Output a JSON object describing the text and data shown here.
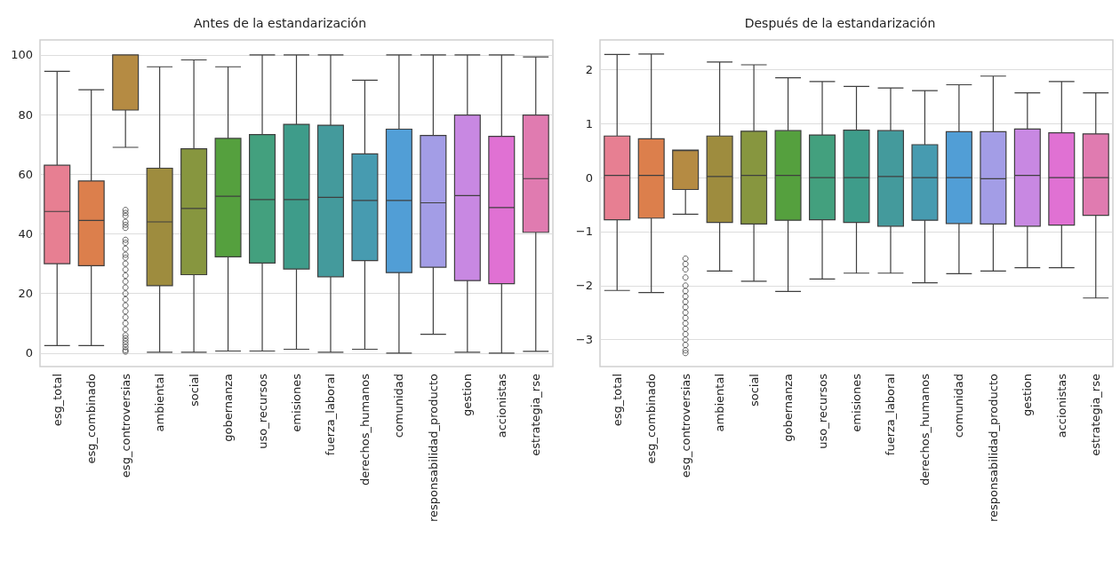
{
  "chart_data": [
    {
      "type": "box",
      "title": "Antes de la estandarización",
      "categories": [
        "esg_total",
        "esg_combinado",
        "esg_controversias",
        "ambiental",
        "social",
        "gobernanza",
        "uso_recursos",
        "emisiones",
        "fuerza_laboral",
        "derechos_humanos",
        "comunidad",
        "responsabilidad_producto",
        "gestion",
        "accionistas",
        "estrategia_rse"
      ],
      "colors": [
        "#e77f92",
        "#dc7f4c",
        "#b58b43",
        "#9e8c3e",
        "#87963f",
        "#55a03e",
        "#43a07e",
        "#3e9c8a",
        "#449a9c",
        "#479bb0",
        "#519ed6",
        "#a39de6",
        "#c888e2",
        "#e071d3",
        "#e07bb0"
      ],
      "boxes": [
        {
          "low": 2.5,
          "q1": 30,
          "median": 47.5,
          "q3": 63,
          "high": 94.5
        },
        {
          "low": 2.5,
          "q1": 29.3,
          "median": 44.5,
          "q3": 57.7,
          "high": 88.3
        },
        {
          "low": 69,
          "q1": 81.5,
          "median": 100,
          "q3": 100,
          "high": 100,
          "outliers": [
            0.5,
            1,
            2,
            3,
            4,
            5,
            6,
            8,
            10,
            12,
            14,
            16,
            18,
            20,
            22,
            24,
            26,
            28,
            30,
            32,
            33,
            35,
            37,
            38,
            42,
            43,
            44,
            46,
            47,
            48
          ]
        },
        {
          "low": 0.3,
          "q1": 22.6,
          "median": 44,
          "q3": 62,
          "high": 96
        },
        {
          "low": 0.3,
          "q1": 26.3,
          "median": 48.5,
          "q3": 68.5,
          "high": 98.3
        },
        {
          "low": 0.7,
          "q1": 32.3,
          "median": 52.6,
          "q3": 72,
          "high": 96
        },
        {
          "low": 0.7,
          "q1": 30.2,
          "median": 51.5,
          "q3": 73.3,
          "high": 100
        },
        {
          "low": 1.3,
          "q1": 28.2,
          "median": 51.5,
          "q3": 76.7,
          "high": 100
        },
        {
          "low": 0.3,
          "q1": 25.6,
          "median": 52.2,
          "q3": 76.4,
          "high": 100
        },
        {
          "low": 1.3,
          "q1": 31,
          "median": 51.2,
          "q3": 66.8,
          "high": 91.5
        },
        {
          "low": 0,
          "q1": 27,
          "median": 51.2,
          "q3": 75.1,
          "high": 100
        },
        {
          "low": 6.3,
          "q1": 28.8,
          "median": 50.4,
          "q3": 73,
          "high": 100
        },
        {
          "low": 0.3,
          "q1": 24.3,
          "median": 52.8,
          "q3": 79.8,
          "high": 100
        },
        {
          "low": 0,
          "q1": 23.3,
          "median": 48.8,
          "q3": 72.7,
          "high": 100
        },
        {
          "low": 0.6,
          "q1": 40.5,
          "median": 58.5,
          "q3": 79.8,
          "high": 99.3
        }
      ],
      "ylim": [
        -4.5,
        105
      ],
      "yticks": [
        0,
        20,
        40,
        60,
        80,
        100
      ],
      "grid": "y"
    },
    {
      "type": "box",
      "title": "Después de la estandarización",
      "categories": [
        "esg_total",
        "esg_combinado",
        "esg_controversias",
        "ambiental",
        "social",
        "gobernanza",
        "uso_recursos",
        "emisiones",
        "fuerza_laboral",
        "derechos_humanos",
        "comunidad",
        "responsabilidad_producto",
        "gestion",
        "accionistas",
        "estrategia_rse"
      ],
      "colors": [
        "#e77f92",
        "#dc7f4c",
        "#b58b43",
        "#9e8c3e",
        "#87963f",
        "#55a03e",
        "#43a07e",
        "#3e9c8a",
        "#449a9c",
        "#479bb0",
        "#519ed6",
        "#a39de6",
        "#c888e2",
        "#e071d3",
        "#e07bb0"
      ],
      "boxes": [
        {
          "low": -2.09,
          "q1": -0.78,
          "median": 0.04,
          "q3": 0.77,
          "high": 2.28
        },
        {
          "low": -2.13,
          "q1": -0.75,
          "median": 0.04,
          "q3": 0.72,
          "high": 2.29
        },
        {
          "low": -0.68,
          "q1": -0.22,
          "median": 0.5,
          "q3": 0.51,
          "high": 0.51,
          "outliers": [
            -1.5,
            -1.6,
            -1.7,
            -1.85,
            -2,
            -2.1,
            -2.2,
            -2.3,
            -2.4,
            -2.5,
            -2.6,
            -2.7,
            -2.8,
            -2.9,
            -3,
            -3.1,
            -3.2,
            -3.25
          ]
        },
        {
          "low": -1.73,
          "q1": -0.83,
          "median": 0.02,
          "q3": 0.77,
          "high": 2.14
        },
        {
          "low": -1.92,
          "q1": -0.86,
          "median": 0.04,
          "q3": 0.86,
          "high": 2.09
        },
        {
          "low": -2.11,
          "q1": -0.79,
          "median": 0.04,
          "q3": 0.87,
          "high": 1.85
        },
        {
          "low": -1.88,
          "q1": -0.78,
          "median": 0,
          "q3": 0.79,
          "high": 1.78
        },
        {
          "low": -1.77,
          "q1": -0.83,
          "median": 0,
          "q3": 0.88,
          "high": 1.69
        },
        {
          "low": -1.77,
          "q1": -0.9,
          "median": 0.02,
          "q3": 0.87,
          "high": 1.66
        },
        {
          "low": -1.95,
          "q1": -0.79,
          "median": 0,
          "q3": 0.61,
          "high": 1.61
        },
        {
          "low": -1.78,
          "q1": -0.85,
          "median": 0,
          "q3": 0.85,
          "high": 1.72
        },
        {
          "low": -1.73,
          "q1": -0.86,
          "median": -0.02,
          "q3": 0.85,
          "high": 1.88
        },
        {
          "low": -1.67,
          "q1": -0.9,
          "median": 0.04,
          "q3": 0.9,
          "high": 1.57
        },
        {
          "low": -1.67,
          "q1": -0.88,
          "median": 0,
          "q3": 0.83,
          "high": 1.78
        },
        {
          "low": -2.23,
          "q1": -0.7,
          "median": 0,
          "q3": 0.81,
          "high": 1.57
        }
      ],
      "ylim": [
        -3.5,
        2.55
      ],
      "yticks": [
        -3,
        -2,
        -1,
        0,
        1,
        2
      ],
      "grid": "y"
    }
  ]
}
